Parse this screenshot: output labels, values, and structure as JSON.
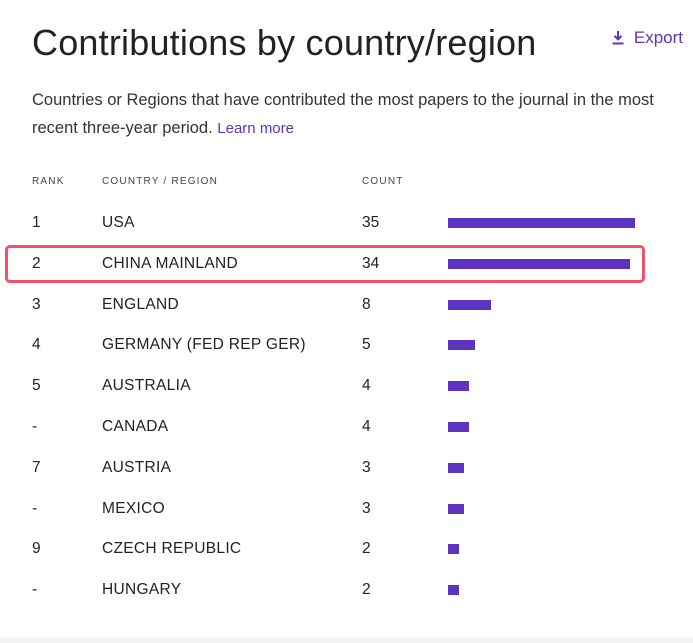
{
  "header": {
    "title": "Contributions by country/region",
    "export_label": "Export"
  },
  "description": {
    "text": "Countries or Regions that have contributed the most papers to the journal in the most recent three-year period.",
    "learn_more": "Learn more"
  },
  "table": {
    "columns": {
      "rank": "RANK",
      "country": "COUNTRY / REGION",
      "count": "COUNT"
    },
    "max_count": 35,
    "rows": [
      {
        "rank": "1",
        "country": "USA",
        "count": "35",
        "value": 35
      },
      {
        "rank": "2",
        "country": "CHINA MAINLAND",
        "count": "34",
        "value": 34,
        "highlighted": true
      },
      {
        "rank": "3",
        "country": "ENGLAND",
        "count": "8",
        "value": 8
      },
      {
        "rank": "4",
        "country": "GERMANY (FED REP GER)",
        "count": "5",
        "value": 5
      },
      {
        "rank": "5",
        "country": "AUSTRALIA",
        "count": "4",
        "value": 4
      },
      {
        "rank": "-",
        "country": "CANADA",
        "count": "4",
        "value": 4
      },
      {
        "rank": "7",
        "country": "AUSTRIA",
        "count": "3",
        "value": 3
      },
      {
        "rank": "-",
        "country": "MEXICO",
        "count": "3",
        "value": 3
      },
      {
        "rank": "9",
        "country": "CZECH REPUBLIC",
        "count": "2",
        "value": 2
      },
      {
        "rank": "-",
        "country": "HUNGARY",
        "count": "2",
        "value": 2
      }
    ]
  },
  "colors": {
    "accent": "#5e33bf",
    "highlight_border": "#f0526a"
  },
  "icons": {
    "export": "download-icon"
  }
}
